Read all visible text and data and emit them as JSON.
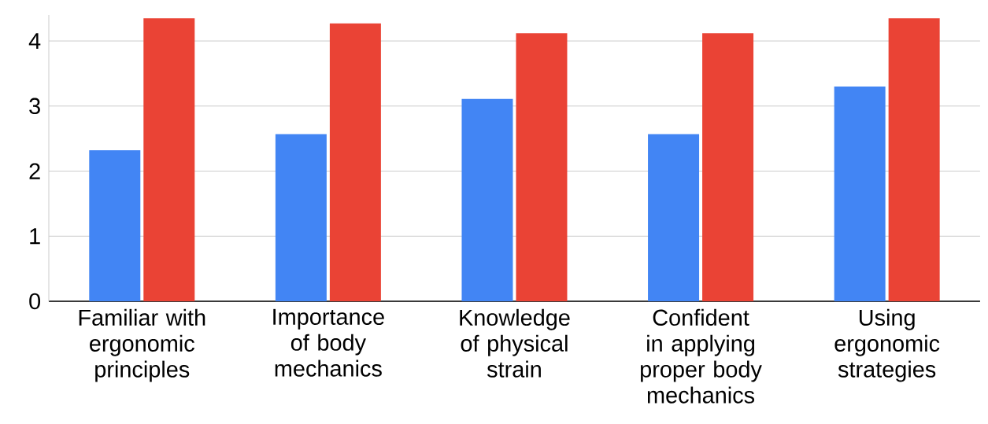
{
  "chart_data": {
    "type": "bar",
    "categories": [
      "Familiar with ergonomic principles",
      "Importance of body mechanics",
      "Knowledge of physical strain",
      "Confident in applying proper body mechanics",
      "Using ergonomic strategies"
    ],
    "series": [
      {
        "color": "#4285f4",
        "values": [
          2.32,
          2.57,
          3.11,
          2.57,
          3.3
        ]
      },
      {
        "color": "#ea4335",
        "values": [
          4.35,
          4.27,
          4.12,
          4.12,
          4.35
        ]
      }
    ],
    "ylim": [
      0,
      4.4
    ],
    "yticks": [
      0,
      1,
      2,
      3,
      4
    ],
    "grid": "y"
  }
}
